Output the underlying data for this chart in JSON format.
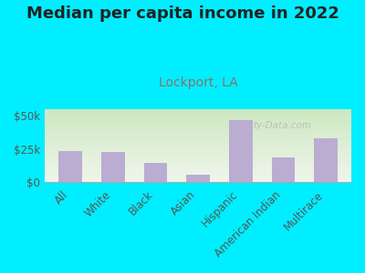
{
  "title": "Median per capita income in 2022",
  "subtitle": "Lockport, LA",
  "categories": [
    "All",
    "White",
    "Black",
    "Asian",
    "Hispanic",
    "American Indian",
    "Multirace"
  ],
  "values": [
    23500,
    22800,
    14500,
    5500,
    47000,
    18500,
    33000
  ],
  "bar_color": "#bbadd1",
  "background_outer": "#00eeff",
  "background_inner_topleft": "#c8e6c0",
  "background_inner_bottomright": "#f5f5ee",
  "title_color": "#222222",
  "subtitle_color": "#8a7070",
  "tick_label_color": "#555555",
  "ylim": [
    0,
    55000
  ],
  "yticks": [
    0,
    25000,
    50000
  ],
  "ytick_labels": [
    "$0",
    "$25k",
    "$50k"
  ],
  "title_fontsize": 13,
  "subtitle_fontsize": 10,
  "tick_fontsize": 8.5,
  "watermark": "ty-Data.com"
}
